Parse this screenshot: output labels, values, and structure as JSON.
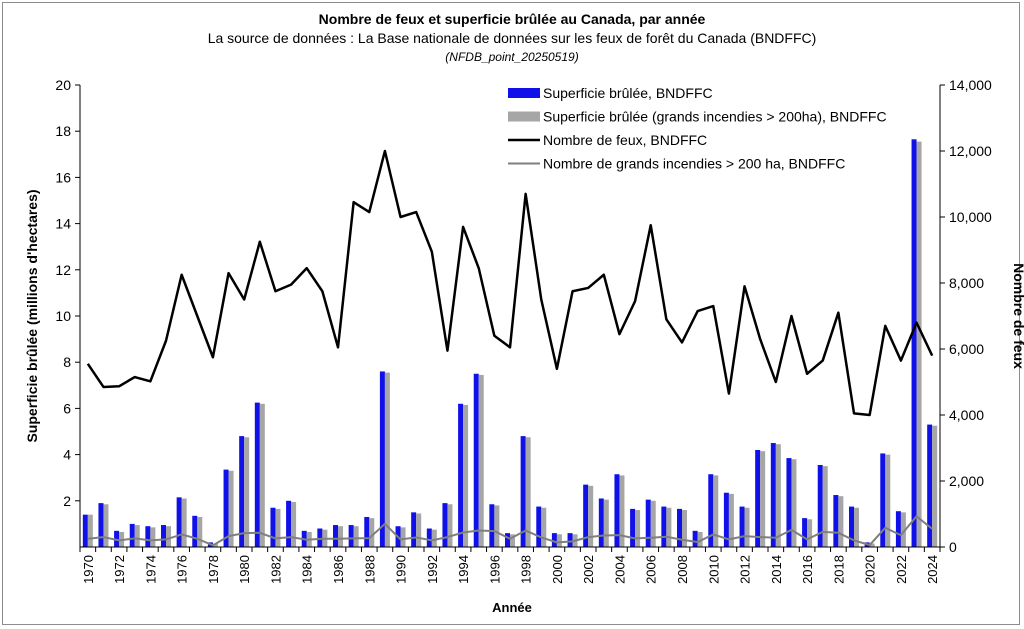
{
  "chart_data": {
    "type": "bar",
    "title": "Nombre de feux et superficie brûlée au Canada, par année",
    "subtitle": "La source de données : La Base nationale de données sur les feux de forêt du Canada (BNDFFC)",
    "source_note": "(NFDB_point_20250519)",
    "xlabel": "Année",
    "ylabel": "Superficie brûlée (millions d'hectares)",
    "y2label": "Nombre de feux",
    "ylim": [
      0,
      20
    ],
    "y2lim": [
      0,
      14000
    ],
    "y_ticks": [
      "2",
      "4",
      "6",
      "8",
      "10",
      "12",
      "14",
      "16",
      "18",
      "20"
    ],
    "y2_ticks": [
      "0",
      "2,000",
      "4,000",
      "6,000",
      "8,000",
      "10,000",
      "12,000",
      "14,000"
    ],
    "legend_position": "top-right",
    "colors": {
      "area_all": "#1010e8",
      "area_large": "#a6a6a6",
      "fires_all": "#000000",
      "fires_large": "#7f7f7f",
      "axis": "#000000"
    },
    "x": [
      1970,
      1971,
      1972,
      1973,
      1974,
      1975,
      1976,
      1977,
      1978,
      1979,
      1980,
      1981,
      1982,
      1983,
      1984,
      1985,
      1986,
      1987,
      1988,
      1989,
      1990,
      1991,
      1992,
      1993,
      1994,
      1995,
      1996,
      1997,
      1998,
      1999,
      2000,
      2001,
      2002,
      2003,
      2004,
      2005,
      2006,
      2007,
      2008,
      2009,
      2010,
      2011,
      2012,
      2013,
      2014,
      2015,
      2016,
      2017,
      2018,
      2019,
      2020,
      2021,
      2022,
      2023,
      2024
    ],
    "x_tick_labels": [
      "1970",
      "1972",
      "1974",
      "1976",
      "1978",
      "1980",
      "1982",
      "1984",
      "1986",
      "1988",
      "1990",
      "1992",
      "1994",
      "1996",
      "1998",
      "2000",
      "2002",
      "2004",
      "2006",
      "2008",
      "2010",
      "2012",
      "2014",
      "2016",
      "2018",
      "2020",
      "2022",
      "2024"
    ],
    "series": [
      {
        "name": "Superficie brûlée, BNDFFC",
        "kind": "bar",
        "axis": "left",
        "values": [
          1.4,
          1.9,
          0.7,
          1.0,
          0.9,
          0.95,
          2.15,
          1.35,
          0.2,
          3.35,
          4.8,
          6.25,
          1.7,
          2.0,
          0.7,
          0.8,
          0.95,
          0.95,
          1.3,
          7.6,
          0.9,
          1.5,
          0.8,
          1.9,
          6.2,
          7.5,
          1.85,
          0.6,
          4.8,
          1.75,
          0.6,
          0.6,
          2.7,
          2.1,
          3.15,
          1.65,
          2.05,
          1.75,
          1.65,
          0.7,
          3.15,
          2.35,
          1.75,
          4.2,
          4.5,
          3.85,
          1.25,
          3.55,
          2.25,
          1.75,
          0.2,
          4.05,
          1.55,
          17.65,
          5.3
        ]
      },
      {
        "name": "Superficie brûlée (grands incendies > 200ha), BNDFFC",
        "kind": "bar",
        "axis": "left",
        "values": [
          1.4,
          1.85,
          0.65,
          0.95,
          0.85,
          0.9,
          2.1,
          1.3,
          0.15,
          3.3,
          4.75,
          6.2,
          1.65,
          1.95,
          0.65,
          0.75,
          0.9,
          0.9,
          1.25,
          7.55,
          0.85,
          1.45,
          0.75,
          1.85,
          6.15,
          7.45,
          1.8,
          0.55,
          4.75,
          1.7,
          0.55,
          0.55,
          2.65,
          2.05,
          3.1,
          1.6,
          2.0,
          1.7,
          1.6,
          0.65,
          3.1,
          2.3,
          1.7,
          4.15,
          4.45,
          3.8,
          1.2,
          3.5,
          2.2,
          1.7,
          0.15,
          4.0,
          1.5,
          17.55,
          5.25
        ]
      },
      {
        "name": "Nombre de feux, BNDFFC",
        "kind": "line",
        "axis": "right",
        "values": [
          5550,
          4850,
          4870,
          5150,
          5020,
          6250,
          8250,
          7000,
          5750,
          8300,
          7500,
          9250,
          7750,
          7950,
          8450,
          7750,
          6050,
          10450,
          10150,
          12000,
          10000,
          10150,
          8950,
          5950,
          9700,
          8450,
          6400,
          6050,
          10700,
          7500,
          5400,
          7750,
          7850,
          8250,
          6450,
          7450,
          9750,
          6900,
          6200,
          7150,
          7300,
          4650,
          7900,
          6300,
          5000,
          7000,
          5250,
          5650,
          7100,
          4050,
          4000,
          6700,
          5650,
          6800,
          5800
        ]
      },
      {
        "name": "Nombre de grands incendies > 200 ha, BNDFFC",
        "kind": "line",
        "axis": "right",
        "values": [
          250,
          300,
          200,
          260,
          200,
          230,
          380,
          250,
          50,
          330,
          420,
          430,
          260,
          300,
          220,
          250,
          250,
          260,
          270,
          700,
          230,
          290,
          200,
          300,
          440,
          500,
          480,
          250,
          500,
          290,
          140,
          170,
          300,
          350,
          360,
          260,
          280,
          310,
          220,
          150,
          380,
          230,
          330,
          300,
          280,
          520,
          230,
          460,
          430,
          200,
          60,
          580,
          360,
          930,
          550
        ]
      }
    ]
  }
}
